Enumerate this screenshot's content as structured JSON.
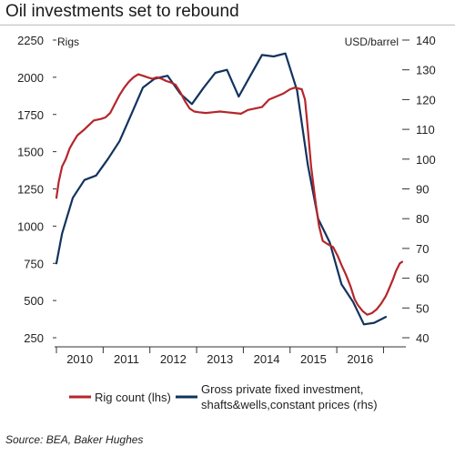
{
  "title": "Oil investments set to rebound",
  "source": "Source: BEA, Baker Hughes",
  "chart_data": {
    "type": "line",
    "x_ticks": [
      "2010",
      "2011",
      "2012",
      "2013",
      "2014",
      "2015",
      "2016"
    ],
    "xlim": [
      2009.5,
      2016.9
    ],
    "left_axis": {
      "label": "Rigs",
      "ylim": [
        250,
        2250
      ],
      "ticks": [
        250,
        500,
        750,
        1000,
        1250,
        1500,
        1750,
        2000,
        2250
      ]
    },
    "right_axis": {
      "label": "USD/barrel",
      "ylim": [
        40,
        140
      ],
      "ticks": [
        40,
        50,
        60,
        70,
        80,
        90,
        100,
        110,
        120,
        130,
        140
      ]
    },
    "legend_position": "bottom",
    "grid": false,
    "series": [
      {
        "name": "Rig count (lhs)",
        "axis": "left",
        "color": "#b5262b",
        "points": [
          [
            2009.5,
            1190
          ],
          [
            2009.55,
            1300
          ],
          [
            2009.62,
            1400
          ],
          [
            2009.7,
            1450
          ],
          [
            2009.78,
            1520
          ],
          [
            2009.85,
            1560
          ],
          [
            2009.95,
            1610
          ],
          [
            2010.1,
            1650
          ],
          [
            2010.2,
            1680
          ],
          [
            2010.3,
            1710
          ],
          [
            2010.45,
            1720
          ],
          [
            2010.55,
            1730
          ],
          [
            2010.65,
            1760
          ],
          [
            2010.75,
            1820
          ],
          [
            2010.85,
            1880
          ],
          [
            2010.95,
            1930
          ],
          [
            2011.05,
            1970
          ],
          [
            2011.15,
            2000
          ],
          [
            2011.25,
            2020
          ],
          [
            2011.35,
            2010
          ],
          [
            2011.45,
            2000
          ],
          [
            2011.55,
            1990
          ],
          [
            2011.65,
            2000
          ],
          [
            2011.75,
            1990
          ],
          [
            2011.85,
            1975
          ],
          [
            2011.95,
            1965
          ],
          [
            2012.05,
            1950
          ],
          [
            2012.15,
            1900
          ],
          [
            2012.25,
            1840
          ],
          [
            2012.35,
            1790
          ],
          [
            2012.45,
            1770
          ],
          [
            2012.55,
            1765
          ],
          [
            2012.7,
            1760
          ],
          [
            2012.85,
            1765
          ],
          [
            2013.0,
            1770
          ],
          [
            2013.15,
            1765
          ],
          [
            2013.3,
            1760
          ],
          [
            2013.45,
            1755
          ],
          [
            2013.6,
            1780
          ],
          [
            2013.75,
            1790
          ],
          [
            2013.9,
            1800
          ],
          [
            2014.05,
            1850
          ],
          [
            2014.2,
            1870
          ],
          [
            2014.35,
            1890
          ],
          [
            2014.5,
            1920
          ],
          [
            2014.6,
            1930
          ],
          [
            2014.75,
            1920
          ],
          [
            2014.82,
            1850
          ],
          [
            2014.88,
            1650
          ],
          [
            2014.95,
            1400
          ],
          [
            2015.05,
            1150
          ],
          [
            2015.12,
            1000
          ],
          [
            2015.2,
            900
          ],
          [
            2015.3,
            880
          ],
          [
            2015.42,
            860
          ],
          [
            2015.52,
            800
          ],
          [
            2015.6,
            740
          ],
          [
            2015.7,
            670
          ],
          [
            2015.8,
            590
          ],
          [
            2015.88,
            510
          ],
          [
            2015.95,
            470
          ],
          [
            2016.05,
            430
          ],
          [
            2016.15,
            405
          ],
          [
            2016.25,
            415
          ],
          [
            2016.35,
            440
          ],
          [
            2016.45,
            480
          ],
          [
            2016.55,
            530
          ],
          [
            2016.62,
            580
          ],
          [
            2016.7,
            640
          ],
          [
            2016.77,
            700
          ],
          [
            2016.85,
            750
          ],
          [
            2016.9,
            760
          ]
        ]
      },
      {
        "name": "Gross private fixed investment, shafts&wells,constant prices (rhs)",
        "axis": "right",
        "color": "#12335e",
        "points": [
          [
            2009.5,
            65
          ],
          [
            2009.62,
            75
          ],
          [
            2009.85,
            87
          ],
          [
            2010.1,
            93
          ],
          [
            2010.35,
            94.5
          ],
          [
            2010.6,
            100
          ],
          [
            2010.85,
            106
          ],
          [
            2011.1,
            115
          ],
          [
            2011.35,
            124
          ],
          [
            2011.6,
            127
          ],
          [
            2011.88,
            128
          ],
          [
            2012.15,
            122
          ],
          [
            2012.4,
            118.5
          ],
          [
            2012.65,
            124
          ],
          [
            2012.9,
            129
          ],
          [
            2013.15,
            130
          ],
          [
            2013.4,
            121
          ],
          [
            2013.65,
            128
          ],
          [
            2013.9,
            135
          ],
          [
            2014.15,
            134.5
          ],
          [
            2014.4,
            135.5
          ],
          [
            2014.65,
            123
          ],
          [
            2014.88,
            98
          ],
          [
            2015.1,
            80
          ],
          [
            2015.35,
            72
          ],
          [
            2015.6,
            58
          ],
          [
            2015.85,
            52
          ],
          [
            2016.08,
            44.5
          ],
          [
            2016.3,
            45
          ],
          [
            2016.55,
            47
          ]
        ]
      }
    ]
  }
}
